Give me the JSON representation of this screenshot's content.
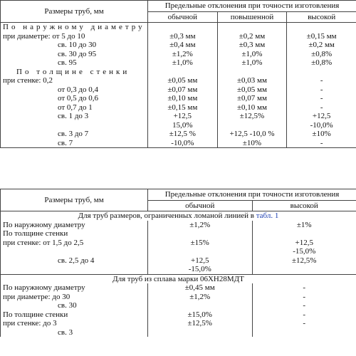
{
  "tables": [
    {
      "size_header": "Размеры труб, мм",
      "dev_header": "Предельные отклонения при точности изготовления",
      "columns": [
        "обычной",
        "повышенной",
        "высокой"
      ],
      "rows": [
        {
          "section": "По наружному диаметру"
        },
        {
          "label": "при диаметре: от 5 до 10",
          "cells": [
            "±0,3 мм",
            "±0,2 мм",
            "±0,15 мм"
          ]
        },
        {
          "label": "св. 10 до 30",
          "cells": [
            "±0,4 мм",
            "±0,3 мм",
            "±0,2 мм"
          ]
        },
        {
          "label": "св. 30 до 95",
          "cells": [
            "±1,2%",
            "±1,0%",
            "±0,8%"
          ]
        },
        {
          "label": "св. 95",
          "cells": [
            "±1,0%",
            "±1,0%",
            "±0,8%"
          ]
        },
        {
          "section": "По толщине стенки"
        },
        {
          "label": "при стенке: 0,2",
          "cells": [
            "±0,05 мм",
            "±0,03 мм",
            "-"
          ]
        },
        {
          "label": "от 0,3 до 0,4",
          "cells": [
            "±0,07 мм",
            "±0,05 мм",
            "-"
          ]
        },
        {
          "label": "от 0,5 до 0,6",
          "cells": [
            "±0,10 мм",
            "±0,07 мм",
            "-"
          ]
        },
        {
          "label": "от 0,7 до 1",
          "cells": [
            "±0,15 мм",
            "±0,10 мм",
            "-"
          ]
        },
        {
          "label": "св. 1 до 3",
          "cells": [
            [
              "+12,5",
              "15,0%"
            ],
            "±12,5%",
            [
              "+12,5",
              "-10,0%"
            ]
          ]
        },
        {
          "label": "св. 3 до 7",
          "cells": [
            "±12,5 %",
            "+12,5 -10,0 %",
            "±10%"
          ]
        },
        {
          "label": "св. 7",
          "cells": [
            "-10,0%",
            "±10%",
            "-"
          ]
        }
      ]
    },
    {
      "size_header": "Размеры труб, мм",
      "dev_header": "Предельные отклонения при точности изготовления",
      "columns": [
        "обычной",
        "высокой"
      ],
      "rows": [
        {
          "note": "Для труб размеров, ограниченных ломаной линией в",
          "link": "табл. 1"
        },
        {
          "label": "По наружному диаметру",
          "cells": [
            "±1,2%",
            "±1%"
          ]
        },
        {
          "label": "По толщине стенки",
          "cells": [
            "",
            ""
          ]
        },
        {
          "label": "при стенке: от 1,5 до 2,5",
          "cells": [
            "±15%",
            [
              "+12,5",
              "-15,0%"
            ]
          ]
        },
        {
          "label": "св. 2,5 до 4",
          "cells": [
            [
              "+12,5",
              "-15,0%"
            ],
            "±12,5%"
          ]
        },
        {
          "note": "Для труб из сплава марки 06ХН28МДТ"
        },
        {
          "label": "По наружному диаметру",
          "cells": [
            "±0,45 мм",
            "-"
          ]
        },
        {
          "label": "при диаметре: до 30",
          "cells": [
            "±1,2%",
            "-"
          ]
        },
        {
          "label": "св. 30",
          "cells": [
            "",
            "-"
          ]
        },
        {
          "label": "По толщине стенки",
          "cells": [
            "±15,0%",
            "-"
          ]
        },
        {
          "label": "при стенке: до 3",
          "cells": [
            "±12,5%",
            "-"
          ]
        },
        {
          "label": "св. 3",
          "cells": [
            "",
            ""
          ]
        }
      ]
    }
  ]
}
